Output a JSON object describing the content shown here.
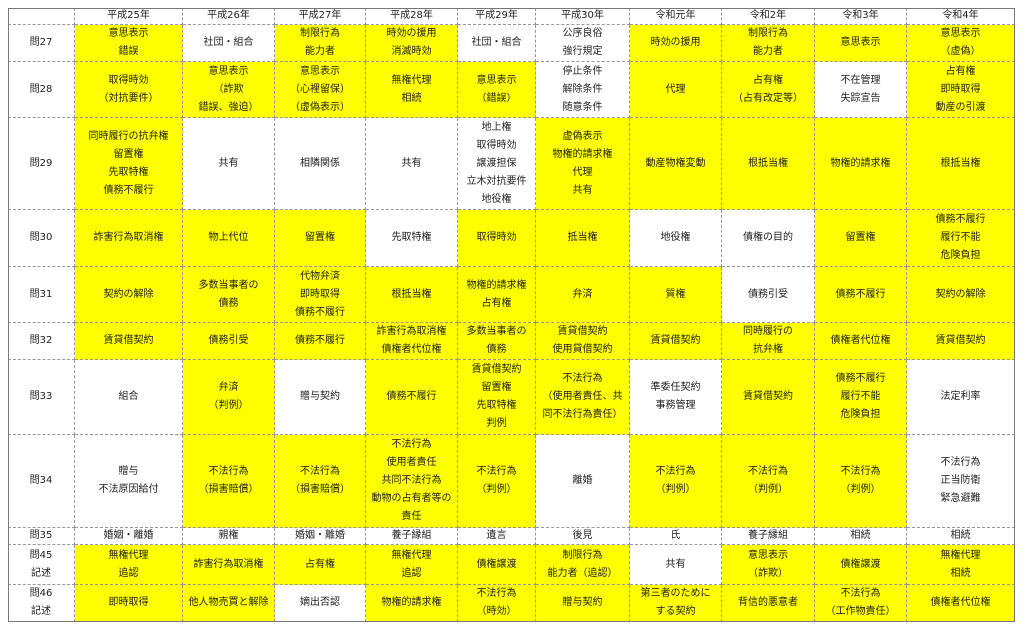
{
  "table": {
    "columns": [
      "平成25年",
      "平成26年",
      "平成27年",
      "平成28年",
      "平成29年",
      "平成30年",
      "令和元年",
      "令和2年",
      "令和3年",
      "令和4年"
    ],
    "rows": [
      {
        "label": [
          "問27"
        ],
        "cells": [
          {
            "lines": [
              "意思表示",
              "錯誤"
            ],
            "highlighted": true
          },
          {
            "lines": [
              "社団・組合"
            ],
            "highlighted": false
          },
          {
            "lines": [
              "制限行為",
              "能力者"
            ],
            "highlighted": true
          },
          {
            "lines": [
              "時効の援用",
              "消滅時効"
            ],
            "highlighted": true
          },
          {
            "lines": [
              "社団・組合"
            ],
            "highlighted": false
          },
          {
            "lines": [
              "公序良俗",
              "強行規定"
            ],
            "highlighted": false
          },
          {
            "lines": [
              "時効の援用"
            ],
            "highlighted": true
          },
          {
            "lines": [
              "制限行為",
              "能力者"
            ],
            "highlighted": true
          },
          {
            "lines": [
              "意思表示"
            ],
            "highlighted": true
          },
          {
            "lines": [
              "意思表示",
              "（虚偽）"
            ],
            "highlighted": true
          }
        ]
      },
      {
        "label": [
          "問28"
        ],
        "cells": [
          {
            "lines": [
              "取得時効",
              "（対抗要件）"
            ],
            "highlighted": true
          },
          {
            "lines": [
              "意思表示",
              "（詐欺",
              "錯誤、強迫）"
            ],
            "highlighted": true
          },
          {
            "lines": [
              "意思表示",
              "（心裡留保）",
              "（虚偽表示）"
            ],
            "highlighted": true
          },
          {
            "lines": [
              "無権代理",
              "相続"
            ],
            "highlighted": true
          },
          {
            "lines": [
              "意思表示",
              "（錯誤）"
            ],
            "highlighted": true
          },
          {
            "lines": [
              "停止条件",
              "解除条件",
              "随意条件"
            ],
            "highlighted": false
          },
          {
            "lines": [
              "代理"
            ],
            "highlighted": true
          },
          {
            "lines": [
              "占有権",
              "（占有改定等）"
            ],
            "highlighted": true
          },
          {
            "lines": [
              "不在管理",
              "失踪宣告"
            ],
            "highlighted": false
          },
          {
            "lines": [
              "占有権",
              "即時取得",
              "動産の引渡"
            ],
            "highlighted": true
          }
        ]
      },
      {
        "label": [
          "問29"
        ],
        "cells": [
          {
            "lines": [
              "同時履行の抗弁権",
              "留置権",
              "先取特権",
              "債務不履行"
            ],
            "highlighted": true
          },
          {
            "lines": [
              "共有"
            ],
            "highlighted": false
          },
          {
            "lines": [
              "相隣関係"
            ],
            "highlighted": false
          },
          {
            "lines": [
              "共有"
            ],
            "highlighted": false
          },
          {
            "lines": [
              "地上権",
              "取得時効",
              "譲渡担保",
              "立木対抗要件",
              "地役権"
            ],
            "highlighted": false
          },
          {
            "lines": [
              "虚偽表示",
              "物権的請求権",
              "代理",
              "共有"
            ],
            "highlighted": true
          },
          {
            "lines": [
              "動産物権変動"
            ],
            "highlighted": true
          },
          {
            "lines": [
              "根抵当権"
            ],
            "highlighted": true
          },
          {
            "lines": [
              "物権的請求権"
            ],
            "highlighted": true
          },
          {
            "lines": [
              "根抵当権"
            ],
            "highlighted": true
          }
        ]
      },
      {
        "label": [
          "問30"
        ],
        "cells": [
          {
            "lines": [
              "詐害行為取消権"
            ],
            "highlighted": true
          },
          {
            "lines": [
              "物上代位"
            ],
            "highlighted": true
          },
          {
            "lines": [
              "留置権"
            ],
            "highlighted": true
          },
          {
            "lines": [
              "先取特権"
            ],
            "highlighted": false
          },
          {
            "lines": [
              "取得時効"
            ],
            "highlighted": true
          },
          {
            "lines": [
              "抵当権"
            ],
            "highlighted": true
          },
          {
            "lines": [
              "地役権"
            ],
            "highlighted": false
          },
          {
            "lines": [
              "債権の目的"
            ],
            "highlighted": false
          },
          {
            "lines": [
              "留置権"
            ],
            "highlighted": true
          },
          {
            "lines": [
              "債務不履行",
              "履行不能",
              "危険負担"
            ],
            "highlighted": true
          }
        ]
      },
      {
        "label": [
          "問31"
        ],
        "cells": [
          {
            "lines": [
              "契約の解除"
            ],
            "highlighted": true
          },
          {
            "lines": [
              "多数当事者の",
              "債務"
            ],
            "highlighted": true
          },
          {
            "lines": [
              "代物弁済",
              "即時取得",
              "債務不履行"
            ],
            "highlighted": true
          },
          {
            "lines": [
              "根抵当権"
            ],
            "highlighted": true
          },
          {
            "lines": [
              "物権的請求権",
              "占有権"
            ],
            "highlighted": true
          },
          {
            "lines": [
              "弁済"
            ],
            "highlighted": true
          },
          {
            "lines": [
              "質権"
            ],
            "highlighted": true
          },
          {
            "lines": [
              "債務引受"
            ],
            "highlighted": false
          },
          {
            "lines": [
              "債務不履行"
            ],
            "highlighted": true
          },
          {
            "lines": [
              "契約の解除"
            ],
            "highlighted": true
          }
        ]
      },
      {
        "label": [
          "問32"
        ],
        "cells": [
          {
            "lines": [
              "賃貸借契約"
            ],
            "highlighted": true
          },
          {
            "lines": [
              "債務引受"
            ],
            "highlighted": true
          },
          {
            "lines": [
              "債務不履行"
            ],
            "highlighted": true
          },
          {
            "lines": [
              "詐害行為取消権",
              "債権者代位権"
            ],
            "highlighted": true
          },
          {
            "lines": [
              "多数当事者の",
              "債務"
            ],
            "highlighted": true
          },
          {
            "lines": [
              "賃貸借契約",
              "使用貸借契約"
            ],
            "highlighted": true
          },
          {
            "lines": [
              "賃貸借契約"
            ],
            "highlighted": true
          },
          {
            "lines": [
              "同時履行の",
              "抗弁権"
            ],
            "highlighted": true
          },
          {
            "lines": [
              "債権者代位権"
            ],
            "highlighted": true
          },
          {
            "lines": [
              "賃貸借契約"
            ],
            "highlighted": true
          }
        ]
      },
      {
        "label": [
          "問33"
        ],
        "cells": [
          {
            "lines": [
              "組合"
            ],
            "highlighted": false
          },
          {
            "lines": [
              "弁済",
              "（判例）"
            ],
            "highlighted": true
          },
          {
            "lines": [
              "贈与契約"
            ],
            "highlighted": false
          },
          {
            "lines": [
              "債務不履行"
            ],
            "highlighted": true
          },
          {
            "lines": [
              "賃貸借契約",
              "留置権",
              "先取特権",
              "判例"
            ],
            "highlighted": true
          },
          {
            "lines": [
              "不法行為",
              "（使用者責任、共",
              "同不法行為責任）"
            ],
            "highlighted": true
          },
          {
            "lines": [
              "準委任契約",
              "事務管理"
            ],
            "highlighted": false
          },
          {
            "lines": [
              "賃貸借契約"
            ],
            "highlighted": true
          },
          {
            "lines": [
              "債務不履行",
              "履行不能",
              "危険負担"
            ],
            "highlighted": true
          },
          {
            "lines": [
              "法定利率"
            ],
            "highlighted": false
          }
        ]
      },
      {
        "label": [
          "問34"
        ],
        "cells": [
          {
            "lines": [
              "贈与",
              "不法原因給付"
            ],
            "highlighted": false
          },
          {
            "lines": [
              "不法行為",
              "（損害賠償）"
            ],
            "highlighted": true
          },
          {
            "lines": [
              "不法行為",
              "（損害賠償）"
            ],
            "highlighted": true
          },
          {
            "lines": [
              "不法行為",
              "使用者責任",
              "共同不法行為",
              "動物の占有者等の",
              "責任"
            ],
            "highlighted": true
          },
          {
            "lines": [
              "不法行為",
              "（判例）"
            ],
            "highlighted": true
          },
          {
            "lines": [
              "離婚"
            ],
            "highlighted": false
          },
          {
            "lines": [
              "不法行為",
              "（判例）"
            ],
            "highlighted": true
          },
          {
            "lines": [
              "不法行為",
              "（判例）"
            ],
            "highlighted": true
          },
          {
            "lines": [
              "不法行為",
              "（判例）"
            ],
            "highlighted": true
          },
          {
            "lines": [
              "不法行為",
              "正当防衛",
              "緊急避難"
            ],
            "highlighted": false
          }
        ]
      },
      {
        "label": [
          "問35"
        ],
        "cells": [
          {
            "lines": [
              "婚姻・離婚"
            ],
            "highlighted": false
          },
          {
            "lines": [
              "親権"
            ],
            "highlighted": false
          },
          {
            "lines": [
              "婚姻・離婚"
            ],
            "highlighted": false
          },
          {
            "lines": [
              "養子縁組"
            ],
            "highlighted": false
          },
          {
            "lines": [
              "遺言"
            ],
            "highlighted": false
          },
          {
            "lines": [
              "後見"
            ],
            "highlighted": false
          },
          {
            "lines": [
              "氏"
            ],
            "highlighted": false
          },
          {
            "lines": [
              "養子縁組"
            ],
            "highlighted": false
          },
          {
            "lines": [
              "相続"
            ],
            "highlighted": false
          },
          {
            "lines": [
              "相続"
            ],
            "highlighted": false
          }
        ]
      },
      {
        "label": [
          "問45",
          "記述"
        ],
        "cells": [
          {
            "lines": [
              "無権代理",
              "追認"
            ],
            "highlighted": true
          },
          {
            "lines": [
              "詐害行為取消権"
            ],
            "highlighted": true
          },
          {
            "lines": [
              "占有権"
            ],
            "highlighted": true
          },
          {
            "lines": [
              "無権代理",
              "追認"
            ],
            "highlighted": true
          },
          {
            "lines": [
              "債権譲渡"
            ],
            "highlighted": true
          },
          {
            "lines": [
              "制限行為",
              "能力者（追認）"
            ],
            "highlighted": true
          },
          {
            "lines": [
              "共有"
            ],
            "highlighted": false
          },
          {
            "lines": [
              "意思表示",
              "（詐欺）"
            ],
            "highlighted": true
          },
          {
            "lines": [
              "債権譲渡"
            ],
            "highlighted": true
          },
          {
            "lines": [
              "無権代理",
              "相続"
            ],
            "highlighted": true
          }
        ]
      },
      {
        "label": [
          "問46",
          "記述"
        ],
        "cells": [
          {
            "lines": [
              "即時取得"
            ],
            "highlighted": true
          },
          {
            "lines": [
              "他人物売買と解除"
            ],
            "highlighted": true
          },
          {
            "lines": [
              "嫡出否認"
            ],
            "highlighted": false
          },
          {
            "lines": [
              "物権的請求権"
            ],
            "highlighted": true
          },
          {
            "lines": [
              "不法行為",
              "（時効）"
            ],
            "highlighted": true
          },
          {
            "lines": [
              "贈与契約"
            ],
            "highlighted": true
          },
          {
            "lines": [
              "第三者のために",
              "する契約"
            ],
            "highlighted": true
          },
          {
            "lines": [
              "背信的悪意者"
            ],
            "highlighted": true
          },
          {
            "lines": [
              "不法行為",
              "（工作物責任）"
            ],
            "highlighted": true
          },
          {
            "lines": [
              "債権者代位権"
            ],
            "highlighted": true
          }
        ]
      }
    ]
  }
}
